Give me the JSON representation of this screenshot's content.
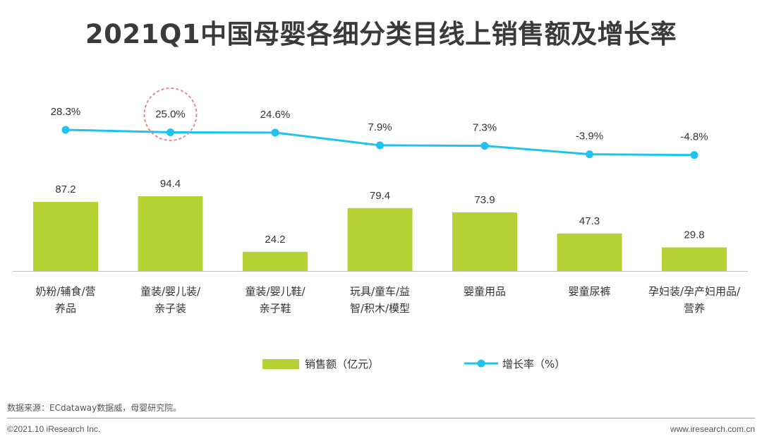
{
  "header": {
    "title": "2021Q1中国母婴各细分类目线上销售额及增长率"
  },
  "chart_data": {
    "type": "bar",
    "title": "2021Q1中国母婴各细分类目线上销售额及增长率",
    "categories": [
      [
        "奶粉/辅食/营",
        "养品"
      ],
      [
        "童装/婴儿装/",
        "亲子装"
      ],
      [
        "童装/婴儿鞋/",
        "亲子鞋"
      ],
      [
        "玩具/童车/益",
        "智/积木/模型"
      ],
      [
        "婴童用品"
      ],
      [
        "婴童尿裤"
      ],
      [
        "孕妇装/孕产妇用品/",
        "营养"
      ]
    ],
    "series": [
      {
        "name": "销售额（亿元）",
        "type": "bar",
        "values": [
          87.2,
          94.4,
          24.2,
          79.4,
          73.9,
          47.3,
          29.8
        ],
        "labels": [
          "87.2",
          "94.4",
          "24.2",
          "79.4",
          "73.9",
          "47.3",
          "29.8"
        ],
        "color": "#b5d334"
      },
      {
        "name": "增长率（%）",
        "type": "line",
        "values": [
          28.3,
          25.0,
          24.6,
          7.9,
          7.3,
          -3.9,
          -4.8
        ],
        "labels": [
          "28.3%",
          "25.0%",
          "24.6%",
          "7.9%",
          "7.3%",
          "-3.9%",
          "-4.8%"
        ],
        "color": "#1fc4ee"
      }
    ],
    "highlight_index": 1,
    "highlight_color": "#e88a8a",
    "legend_position": "bottom",
    "grid": false
  },
  "footer": {
    "source": "数据来源：ECdataway数据威，母婴研究院。",
    "copyright": "©2021.10 iResearch Inc.",
    "website": "www.iresearch.com.cn"
  }
}
